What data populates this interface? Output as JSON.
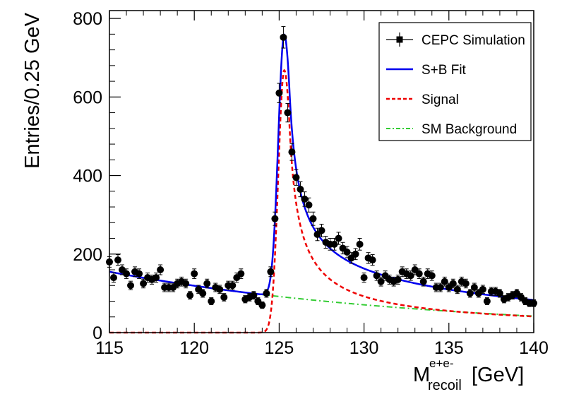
{
  "chart_data": {
    "type": "line",
    "title": "",
    "xlabel": {
      "main": "M",
      "superscript": "e+e-",
      "subscript": "recoil",
      "unit": "[GeV]"
    },
    "ylabel": "Entries/0.25 GeV",
    "xlim": [
      115,
      140
    ],
    "ylim": [
      0,
      820
    ],
    "x_ticks": [
      115,
      120,
      125,
      130,
      135,
      140
    ],
    "x_tick_labels": [
      "115",
      "120",
      "125",
      "130",
      "135",
      "140"
    ],
    "y_ticks": [
      0,
      200,
      400,
      600,
      800
    ],
    "y_tick_labels": [
      "0",
      "200",
      "400",
      "600",
      "800"
    ],
    "legend": {
      "position": "top-right",
      "entries": [
        {
          "label": "CEPC Simulation",
          "style": "marker-errorbar",
          "color": "#000000"
        },
        {
          "label": "S+B Fit",
          "style": "solid",
          "color": "#0000ee"
        },
        {
          "label": "Signal",
          "style": "dashed",
          "color": "#ee0000"
        },
        {
          "label": "SM Background",
          "style": "dashdot",
          "color": "#33cc33"
        }
      ]
    },
    "series": [
      {
        "name": "CEPC Simulation",
        "type": "scatter-errorbar",
        "color": "#000000",
        "x": [
          115.0,
          115.25,
          115.5,
          115.75,
          116.0,
          116.25,
          116.5,
          116.75,
          117.0,
          117.25,
          117.5,
          117.75,
          118.0,
          118.25,
          118.5,
          118.75,
          119.0,
          119.25,
          119.5,
          119.75,
          120.0,
          120.25,
          120.5,
          120.75,
          121.0,
          121.25,
          121.5,
          121.75,
          122.0,
          122.25,
          122.5,
          122.75,
          123.0,
          123.25,
          123.5,
          123.75,
          124.0,
          124.25,
          124.5,
          124.75,
          125.0,
          125.25,
          125.5,
          125.75,
          126.0,
          126.25,
          126.5,
          126.75,
          127.0,
          127.25,
          127.5,
          127.75,
          128.0,
          128.25,
          128.5,
          128.75,
          129.0,
          129.25,
          129.5,
          129.75,
          130.0,
          130.25,
          130.5,
          130.75,
          131.0,
          131.25,
          131.5,
          131.75,
          132.0,
          132.25,
          132.5,
          132.75,
          133.0,
          133.25,
          133.5,
          133.75,
          134.0,
          134.25,
          134.5,
          134.75,
          135.0,
          135.25,
          135.5,
          135.75,
          136.0,
          136.25,
          136.5,
          136.75,
          137.0,
          137.25,
          137.5,
          137.75,
          138.0,
          138.25,
          138.5,
          138.75,
          139.0,
          139.25,
          139.5,
          139.75,
          140.0
        ],
        "y": [
          180,
          140,
          185,
          160,
          150,
          120,
          155,
          150,
          125,
          140,
          135,
          140,
          160,
          115,
          115,
          115,
          125,
          130,
          125,
          95,
          150,
          110,
          100,
          125,
          80,
          115,
          110,
          90,
          120,
          120,
          140,
          150,
          85,
          90,
          95,
          80,
          70,
          100,
          155,
          290,
          610,
          752,
          560,
          460,
          395,
          365,
          340,
          325,
          290,
          250,
          260,
          230,
          225,
          225,
          240,
          215,
          205,
          190,
          200,
          225,
          140,
          190,
          185,
          145,
          130,
          145,
          135,
          130,
          135,
          155,
          150,
          145,
          160,
          150,
          130,
          150,
          145,
          115,
          115,
          130,
          115,
          125,
          110,
          130,
          125,
          100,
          115,
          100,
          110,
          80,
          105,
          105,
          100,
          85,
          90,
          95,
          100,
          90,
          80,
          75,
          75
        ]
      },
      {
        "name": "S+B Fit",
        "type": "line",
        "color": "#0000ee",
        "style": "solid"
      },
      {
        "name": "Signal",
        "type": "line",
        "color": "#ee0000",
        "style": "dashed"
      },
      {
        "name": "SM Background",
        "type": "line",
        "color": "#33cc33",
        "style": "dashdot"
      }
    ],
    "fit_model": {
      "background": {
        "value_at_115": 155,
        "value_at_140": 42,
        "form": "exponential"
      },
      "signal": {
        "peak_x": 125.3,
        "peak_y": 668,
        "form": "crystal-ball-with-right-tail"
      }
    }
  }
}
